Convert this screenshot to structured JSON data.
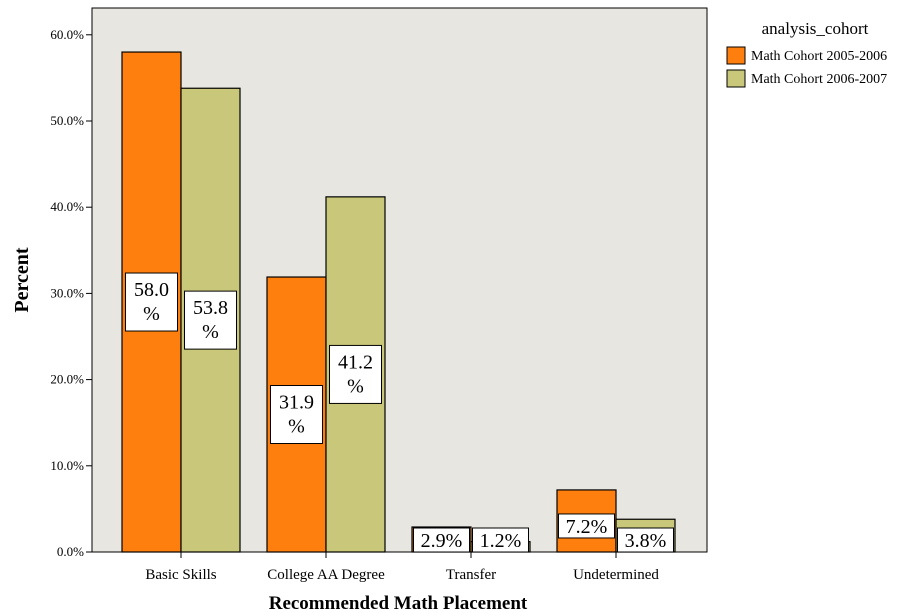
{
  "chart_data": {
    "type": "bar",
    "xlabel": "Recommended Math Placement",
    "ylabel": "Percent",
    "categories": [
      "Basic Skills",
      "College AA Degree",
      "Transfer",
      "Undetermined"
    ],
    "series": [
      {
        "name": "Math Cohort 2005-2006",
        "values": [
          58.0,
          31.9,
          2.9,
          7.2
        ],
        "labels": [
          "58.0\n%",
          "31.9\n%",
          "2.9%",
          "7.2%"
        ],
        "color": "#ff7f0e"
      },
      {
        "name": "Math Cohort 2006-2007",
        "values": [
          53.8,
          41.2,
          1.2,
          3.8
        ],
        "labels": [
          "53.8\n%",
          "41.2\n%",
          "1.2%",
          "3.8%"
        ],
        "color": "#c8c77a"
      }
    ],
    "ylim": [
      0,
      60
    ],
    "yticks": [
      "0.0%",
      "10.0%",
      "20.0%",
      "30.0%",
      "40.0%",
      "50.0%",
      "60.0%"
    ],
    "legend": {
      "title": "analysis_cohort",
      "position": "top-right"
    },
    "plot_background": "#e8e6e1"
  }
}
